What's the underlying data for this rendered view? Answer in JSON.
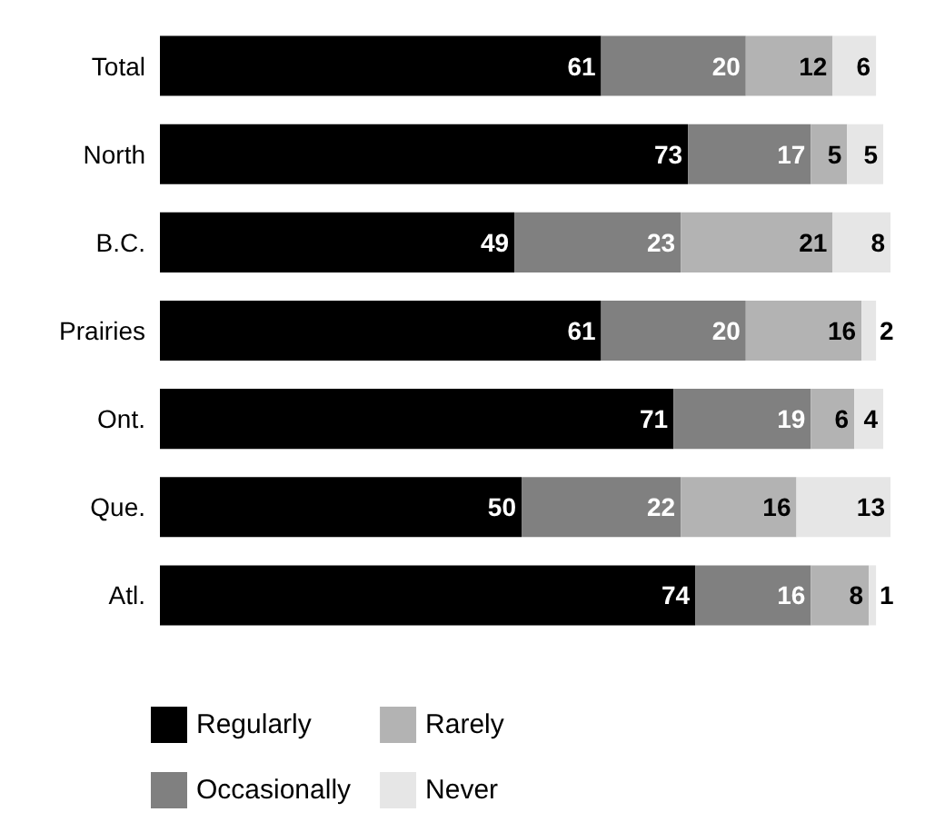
{
  "chart_data": {
    "type": "bar",
    "orientation": "horizontal",
    "stacked": true,
    "data_labels": true,
    "tick_labels": "y",
    "legend": "bottom left",
    "grid": false,
    "categories": [
      "Total",
      "North",
      "B.C.",
      "Prairies",
      "Ont.",
      "Que.",
      "Atl."
    ],
    "series": [
      {
        "name": "Regularly",
        "color": "#000000",
        "values": [
          61,
          73,
          49,
          61,
          71,
          50,
          74
        ]
      },
      {
        "name": "Occasionally",
        "color": "#808080",
        "values": [
          20,
          17,
          23,
          20,
          19,
          22,
          16
        ]
      },
      {
        "name": "Rarely",
        "color": "#b3b3b3",
        "values": [
          12,
          5,
          21,
          16,
          6,
          16,
          8
        ]
      },
      {
        "name": "Never",
        "color": "#e6e6e6",
        "values": [
          6,
          5,
          8,
          2,
          4,
          13,
          1
        ]
      }
    ]
  }
}
